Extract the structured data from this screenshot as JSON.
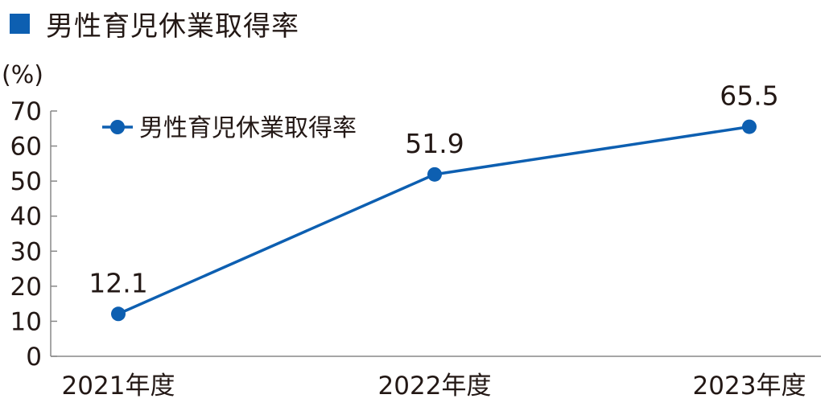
{
  "title": "男性育児休業取得率",
  "colors": {
    "accent": "#0d5fb1",
    "axis": "#888888",
    "text": "#231815"
  },
  "chart_data": {
    "type": "line",
    "title": "男性育児休業取得率",
    "ylabel": "(%)",
    "xlabel": "",
    "categories": [
      "2021年度",
      "2022年度",
      "2023年度"
    ],
    "series": [
      {
        "name": "男性育児休業取得率",
        "values": [
          12.1,
          51.9,
          65.5
        ]
      }
    ],
    "value_labels": [
      "12.1",
      "51.9",
      "65.5"
    ],
    "ylim": [
      0,
      70
    ],
    "yticks": [
      "0",
      "10",
      "20",
      "30",
      "40",
      "50",
      "60",
      "70"
    ],
    "grid": false,
    "legend": "top-left"
  }
}
